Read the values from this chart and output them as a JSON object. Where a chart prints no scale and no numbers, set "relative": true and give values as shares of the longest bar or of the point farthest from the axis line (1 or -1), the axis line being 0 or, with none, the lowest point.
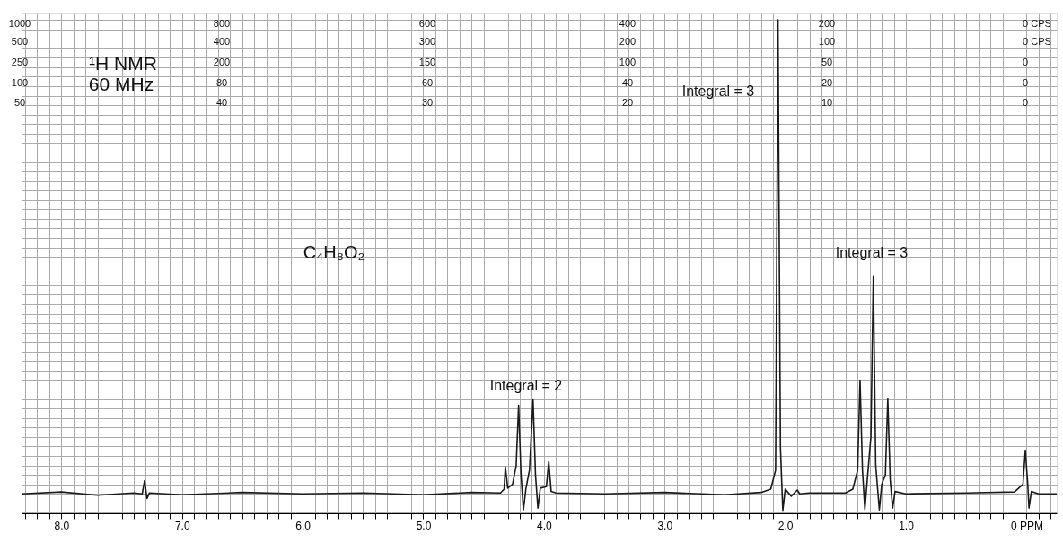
{
  "chart_data": {
    "type": "line",
    "relative": true,
    "grid": true,
    "color": "#1a1a1a",
    "x": [
      8.33,
      8.0,
      7.7,
      7.4,
      7.33,
      7.31,
      7.29,
      7.27,
      7.0,
      6.5,
      6.0,
      5.5,
      5.0,
      4.6,
      4.36,
      4.33,
      4.32,
      4.3,
      4.26,
      4.23,
      4.21,
      4.19,
      4.17,
      4.15,
      4.12,
      4.09,
      4.07,
      4.05,
      4.03,
      3.98,
      3.96,
      3.94,
      3.9,
      3.5,
      3.0,
      2.5,
      2.2,
      2.12,
      2.08,
      2.06,
      2.04,
      2.03,
      2.02,
      2.0,
      1.95,
      1.9,
      1.88,
      1.8,
      1.5,
      1.44,
      1.4,
      1.38,
      1.36,
      1.34,
      1.32,
      1.29,
      1.27,
      1.25,
      1.22,
      1.2,
      1.17,
      1.15,
      1.13,
      1.11,
      1.09,
      1.0,
      0.5,
      0.1,
      0.03,
      0.01,
      -0.01,
      -0.02,
      -0.04,
      -0.1,
      -0.25
    ],
    "values": [
      0,
      0.004,
      -0.003,
      0.002,
      0,
      0.028,
      -0.01,
      0.002,
      -0.002,
      0.003,
      0,
      0.002,
      -0.002,
      0.003,
      0.002,
      0.01,
      0.057,
      0.012,
      0.02,
      0.06,
      0.187,
      0.04,
      -0.034,
      0.01,
      0.05,
      0.198,
      0.04,
      -0.03,
      0.012,
      0.015,
      0.068,
      0.005,
      0.002,
      0,
      0.003,
      -0.002,
      0.003,
      0.01,
      0.05,
      1.0,
      0.1,
      0.03,
      -0.035,
      0.01,
      -0.005,
      0.008,
      0,
      0.002,
      0.002,
      0.01,
      0.05,
      0.24,
      0.05,
      -0.033,
      0.03,
      0.12,
      0.46,
      0.06,
      -0.034,
      0.02,
      0.04,
      0.2,
      0.03,
      -0.03,
      0.005,
      0,
      0.002,
      0.004,
      0.02,
      0.092,
      0.02,
      -0.03,
      0.005,
      0,
      0
    ],
    "xlim": [
      8.33,
      -0.25
    ],
    "xticks": [
      {
        "value": 8.3,
        "label": null
      },
      {
        "value": 8.2,
        "label": null
      },
      {
        "value": 8.1,
        "label": null
      },
      {
        "value": 8.0,
        "label": "8.0"
      },
      {
        "value": 7.9,
        "label": null
      },
      {
        "value": 7.8,
        "label": null
      },
      {
        "value": 7.7,
        "label": null
      },
      {
        "value": 7.6,
        "label": null
      },
      {
        "value": 7.5,
        "label": null
      },
      {
        "value": 7.4,
        "label": null
      },
      {
        "value": 7.3,
        "label": null
      },
      {
        "value": 7.2,
        "label": null
      },
      {
        "value": 7.1,
        "label": null
      },
      {
        "value": 7.0,
        "label": "7.0"
      },
      {
        "value": 6.9,
        "label": null
      },
      {
        "value": 6.8,
        "label": null
      },
      {
        "value": 6.7,
        "label": null
      },
      {
        "value": 6.6,
        "label": null
      },
      {
        "value": 6.5,
        "label": null
      },
      {
        "value": 6.4,
        "label": null
      },
      {
        "value": 6.3,
        "label": null
      },
      {
        "value": 6.2,
        "label": null
      },
      {
        "value": 6.1,
        "label": null
      },
      {
        "value": 6.0,
        "label": "6.0"
      },
      {
        "value": 5.9,
        "label": null
      },
      {
        "value": 5.8,
        "label": null
      },
      {
        "value": 5.7,
        "label": null
      },
      {
        "value": 5.6,
        "label": null
      },
      {
        "value": 5.5,
        "label": null
      },
      {
        "value": 5.4,
        "label": null
      },
      {
        "value": 5.3,
        "label": null
      },
      {
        "value": 5.2,
        "label": null
      },
      {
        "value": 5.1,
        "label": null
      },
      {
        "value": 5.0,
        "label": "5.0"
      },
      {
        "value": 4.9,
        "label": null
      },
      {
        "value": 4.8,
        "label": null
      },
      {
        "value": 4.7,
        "label": null
      },
      {
        "value": 4.6,
        "label": null
      },
      {
        "value": 4.5,
        "label": null
      },
      {
        "value": 4.4,
        "label": null
      },
      {
        "value": 4.3,
        "label": null
      },
      {
        "value": 4.2,
        "label": null
      },
      {
        "value": 4.1,
        "label": null
      },
      {
        "value": 4.0,
        "label": "4.0"
      },
      {
        "value": 3.9,
        "label": null
      },
      {
        "value": 3.8,
        "label": null
      },
      {
        "value": 3.7,
        "label": null
      },
      {
        "value": 3.6,
        "label": null
      },
      {
        "value": 3.5,
        "label": null
      },
      {
        "value": 3.4,
        "label": null
      },
      {
        "value": 3.3,
        "label": null
      },
      {
        "value": 3.2,
        "label": null
      },
      {
        "value": 3.1,
        "label": null
      },
      {
        "value": 3.0,
        "label": "3.0"
      },
      {
        "value": 2.9,
        "label": null
      },
      {
        "value": 2.8,
        "label": null
      },
      {
        "value": 2.7,
        "label": null
      },
      {
        "value": 2.6,
        "label": null
      },
      {
        "value": 2.5,
        "label": null
      },
      {
        "value": 2.4,
        "label": null
      },
      {
        "value": 2.3,
        "label": null
      },
      {
        "value": 2.2,
        "label": null
      },
      {
        "value": 2.1,
        "label": null
      },
      {
        "value": 2.0,
        "label": "2.0"
      },
      {
        "value": 1.9,
        "label": null
      },
      {
        "value": 1.8,
        "label": null
      },
      {
        "value": 1.7,
        "label": null
      },
      {
        "value": 1.6,
        "label": null
      },
      {
        "value": 1.5,
        "label": null
      },
      {
        "value": 1.4,
        "label": null
      },
      {
        "value": 1.3,
        "label": null
      },
      {
        "value": 1.2,
        "label": null
      },
      {
        "value": 1.1,
        "label": null
      },
      {
        "value": 1.0,
        "label": "1.0"
      },
      {
        "value": 0.9,
        "label": null
      },
      {
        "value": 0.8,
        "label": null
      },
      {
        "value": 0.7,
        "label": null
      },
      {
        "value": 0.6,
        "label": null
      },
      {
        "value": 0.5,
        "label": null
      },
      {
        "value": 0.4,
        "label": null
      },
      {
        "value": 0.3,
        "label": null
      },
      {
        "value": 0.2,
        "label": null
      },
      {
        "value": 0.1,
        "label": null
      },
      {
        "value": 0,
        "label": "0 PPM"
      },
      {
        "value": -0.1,
        "label": null
      },
      {
        "value": -0.2,
        "label": null
      }
    ],
    "annotations": [
      "¹H NMR",
      "60 MHz",
      "C₄H₈O₂",
      "Integral = 3",
      "Integral = 3",
      "Integral = 2",
      "1000",
      "500",
      "250",
      "100",
      "50",
      "800",
      "400",
      "200",
      "80",
      "40",
      "600",
      "300",
      "150",
      "60",
      "30",
      "400",
      "200",
      "100",
      "40",
      "20",
      "200",
      "100",
      "50",
      "20",
      "10",
      "0 CPS",
      "0 CPS",
      "0",
      "0",
      "0"
    ]
  }
}
